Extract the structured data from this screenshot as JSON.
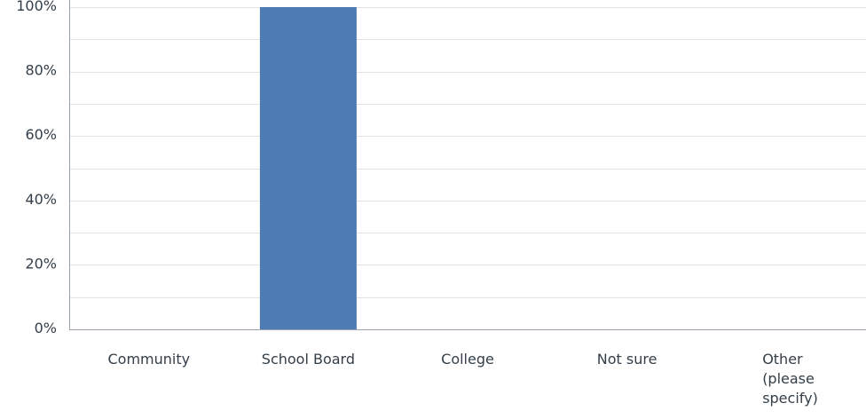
{
  "chart_data": {
    "type": "bar",
    "categories": [
      "Community",
      "School Board",
      "College",
      "Not sure",
      "Other (please specify)"
    ],
    "category_label_lines": [
      [
        "Community"
      ],
      [
        "School Board"
      ],
      [
        "College"
      ],
      [
        "Not sure"
      ],
      [
        "Other",
        "(please",
        "specify)"
      ]
    ],
    "values": [
      0,
      100,
      0,
      0,
      0
    ],
    "unit": "%",
    "ylim": [
      0,
      100
    ],
    "yticks": [
      0,
      20,
      40,
      60,
      80,
      100
    ],
    "ytick_labels": [
      "0%",
      "20%",
      "40%",
      "60%",
      "80%",
      "100%"
    ],
    "grid": true,
    "minor_gridlines": true,
    "title": "",
    "xlabel": "",
    "ylabel": "",
    "colors": {
      "bar": "#4e7bb4",
      "grid": "#e0e3e6",
      "axis": "#9aa3ab",
      "text": "#333e48"
    }
  }
}
